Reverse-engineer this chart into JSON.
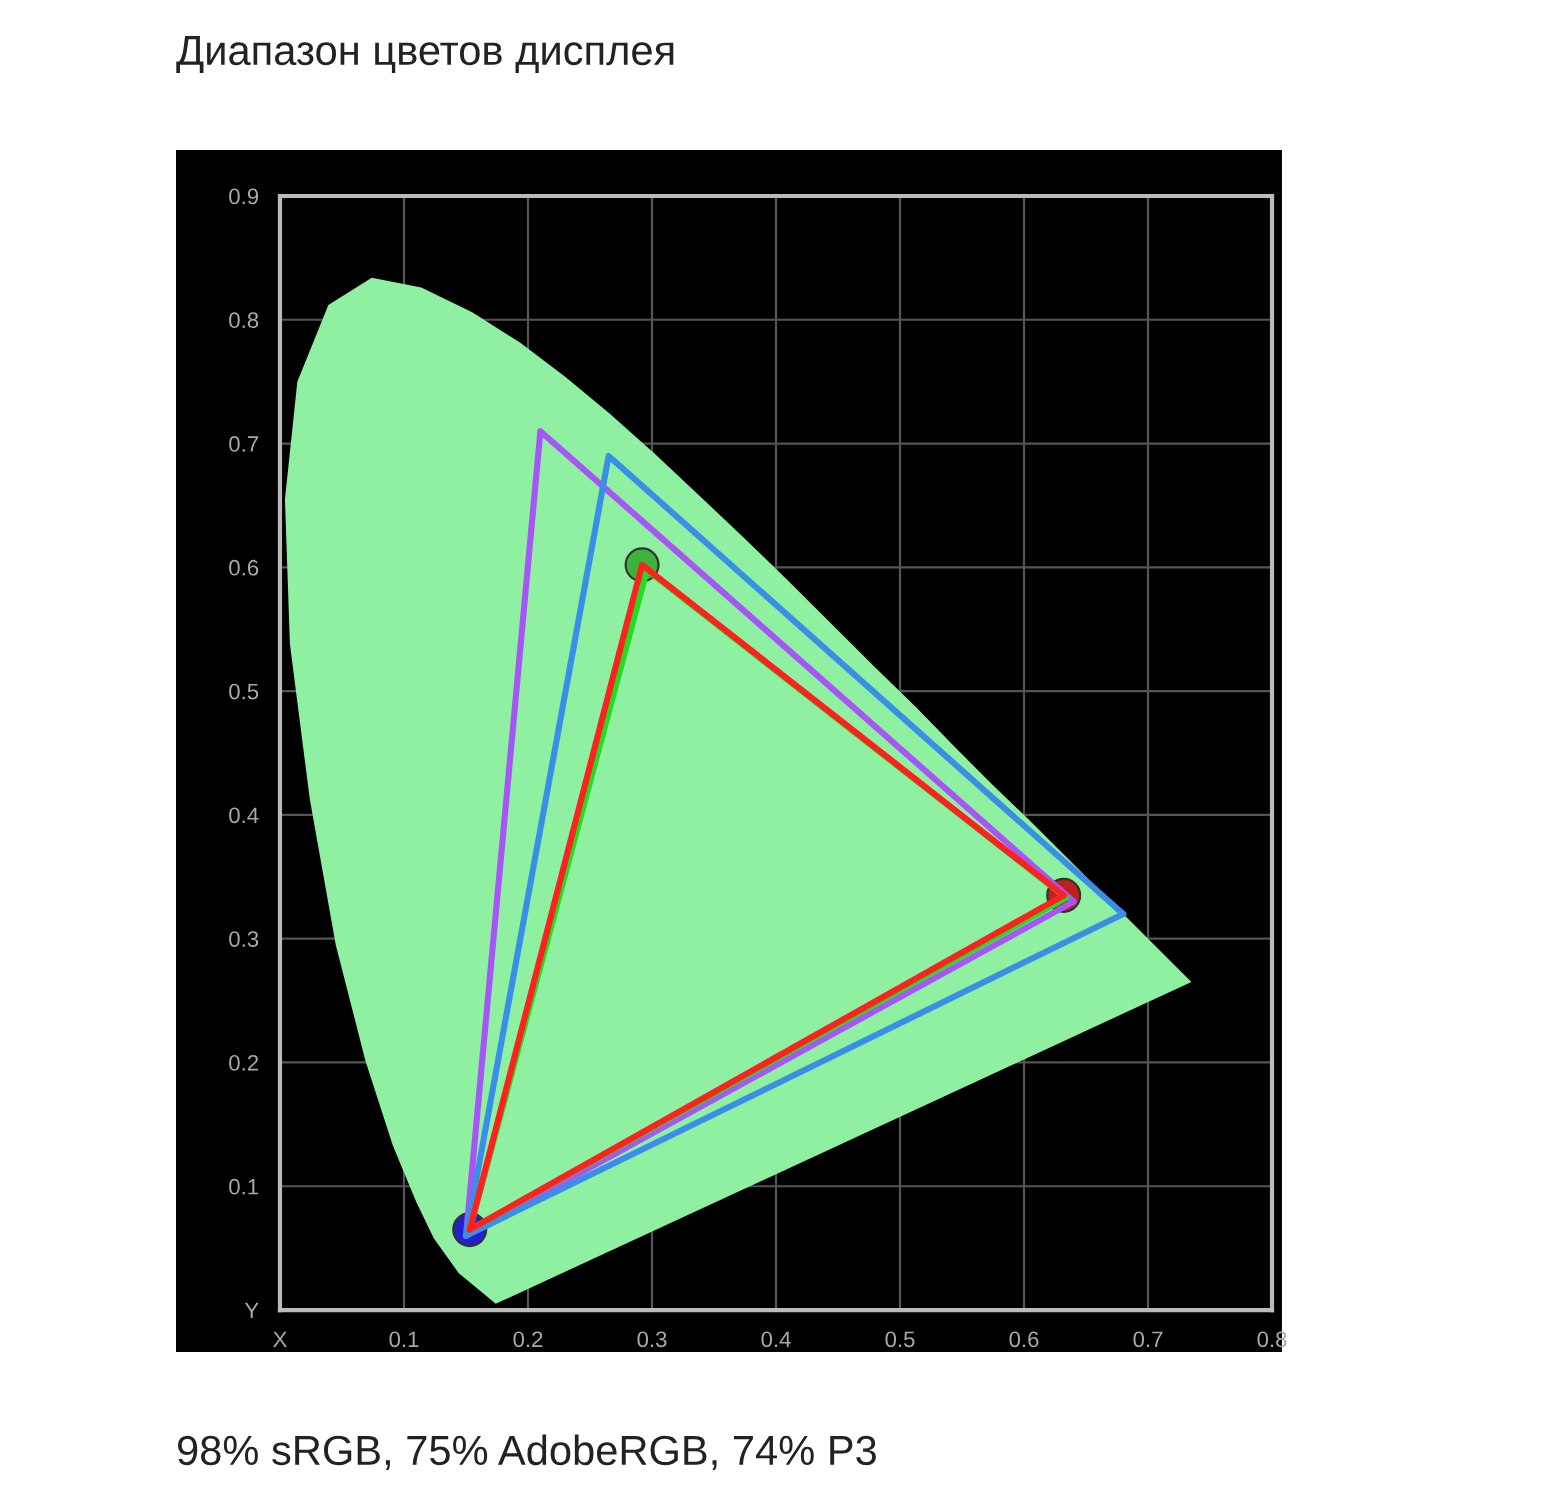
{
  "chart_data": {
    "type": "line",
    "title": "Диапазон цветов дисплея",
    "annotations": [
      "98% sRGB, 75% AdobeRGB, 74% P3"
    ],
    "xlim": [
      0,
      0.8
    ],
    "ylim": [
      0,
      0.9
    ],
    "xticks": [
      {
        "value": 0,
        "label": "X"
      },
      0.1,
      0.2,
      0.3,
      0.4,
      0.5,
      0.6,
      0.7,
      0.8
    ],
    "yticks": [
      {
        "value": 0,
        "label": "Y"
      },
      0.1,
      0.2,
      0.3,
      0.4,
      0.5,
      0.6,
      0.7,
      0.8,
      0.9
    ],
    "grid": true,
    "series": [
      {
        "type": "area",
        "color": "#8ef0a0",
        "x": [
          0.174,
          0.144,
          0.124,
          0.11,
          0.091,
          0.069,
          0.045,
          0.024,
          0.008,
          0.004,
          0.014,
          0.039,
          0.074,
          0.114,
          0.155,
          0.193,
          0.23,
          0.266,
          0.302,
          0.337,
          0.373,
          0.409,
          0.444,
          0.479,
          0.513,
          0.545,
          0.575,
          0.603,
          0.627,
          0.666,
          0.692,
          0.719,
          0.735
        ],
        "values": [
          0.005,
          0.03,
          0.058,
          0.087,
          0.133,
          0.201,
          0.295,
          0.413,
          0.538,
          0.655,
          0.75,
          0.812,
          0.834,
          0.826,
          0.806,
          0.782,
          0.754,
          0.724,
          0.692,
          0.659,
          0.625,
          0.59,
          0.555,
          0.52,
          0.487,
          0.454,
          0.424,
          0.397,
          0.373,
          0.334,
          0.308,
          0.281,
          0.265
        ]
      },
      {
        "color": "#a855f7",
        "x": [
          0.15,
          0.21,
          0.64
        ],
        "values": [
          0.06,
          0.71,
          0.33
        ]
      },
      {
        "color": "#a855f7",
        "x": [
          0.15,
          0.64
        ],
        "values": [
          0.06,
          0.33
        ]
      },
      {
        "color": "#3a8ee6",
        "x": [
          0.15,
          0.265,
          0.68
        ],
        "values": [
          0.06,
          0.69,
          0.32
        ]
      },
      {
        "color": "#3a8ee6",
        "x": [
          0.15,
          0.68
        ],
        "values": [
          0.06,
          0.32
        ]
      },
      {
        "color": "#22dd22",
        "x": [
          0.153,
          0.296,
          0.634
        ],
        "values": [
          0.065,
          0.598,
          0.333
        ]
      },
      {
        "color": "#22dd22",
        "x": [
          0.153,
          0.634
        ],
        "values": [
          0.065,
          0.333
        ]
      },
      {
        "color": "#ff2020",
        "x": [
          0.153,
          0.292,
          0.632
        ],
        "values": [
          0.065,
          0.602,
          0.335
        ]
      },
      {
        "color": "#ff2020",
        "x": [
          0.153,
          0.632
        ],
        "values": [
          0.065,
          0.335
        ]
      },
      {
        "type": "scatter",
        "colors": [
          "#c0201c",
          "#3cb43c",
          "#2020d0"
        ],
        "x": [
          0.632,
          0.292,
          0.153
        ],
        "values": [
          0.335,
          0.602,
          0.065
        ]
      }
    ]
  }
}
